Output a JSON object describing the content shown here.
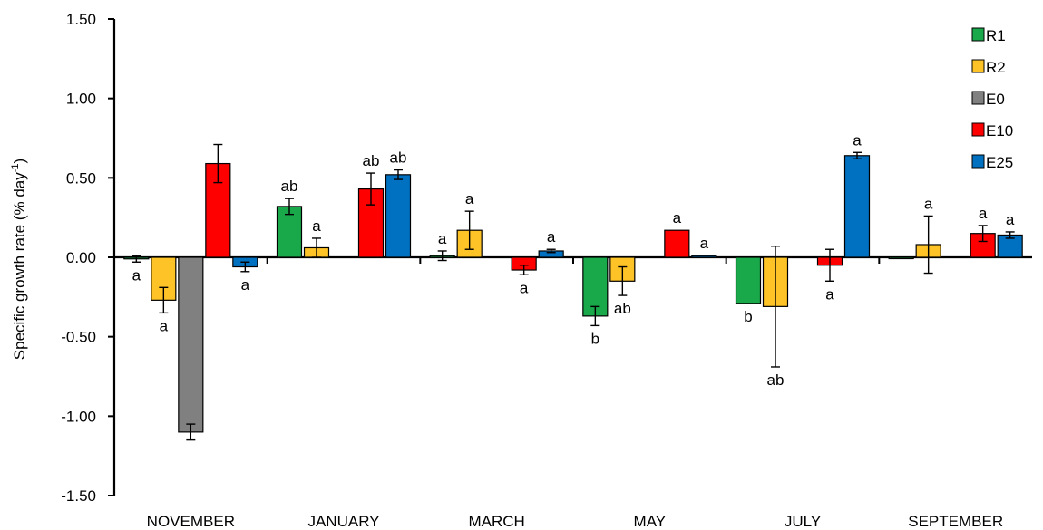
{
  "chart_data": {
    "type": "bar",
    "title": "",
    "xlabel": "",
    "ylabel": "Specific growth rate (% day",
    "ylabel_superscript": "-1",
    "ylabel_close": ")",
    "ylim": [
      -1.5,
      1.5
    ],
    "yticks": [
      "-1.50",
      "-1.00",
      "-0.50",
      "0.00",
      "0.50",
      "1.00",
      "1.50"
    ],
    "ytick_values": [
      -1.5,
      -1.0,
      -0.5,
      0.0,
      0.5,
      1.0,
      1.5
    ],
    "categories": [
      "NOVEMBER",
      "JANUARY",
      "MARCH",
      "MAY",
      "JULY",
      "SEPTEMBER"
    ],
    "grid": false,
    "legend_position": "top-right",
    "series": [
      {
        "name": "R1",
        "color": "#19a84a",
        "values": [
          -0.01,
          0.32,
          0.01,
          -0.37,
          -0.29,
          0.0
        ],
        "errors": [
          0.02,
          0.05,
          0.03,
          0.06,
          0.0,
          0.0
        ],
        "letters": [
          "a",
          "ab",
          "a",
          "b",
          "b",
          ""
        ]
      },
      {
        "name": "R2",
        "color": "#fec326",
        "values": [
          -0.27,
          0.06,
          0.17,
          -0.15,
          -0.31,
          0.08
        ],
        "errors": [
          0.08,
          0.06,
          0.12,
          0.09,
          0.38,
          0.18
        ],
        "letters": [
          "a",
          "a",
          "a",
          "ab",
          "ab",
          "a"
        ]
      },
      {
        "name": "E0",
        "color": "#808080",
        "values": [
          -1.1,
          null,
          null,
          null,
          null,
          null
        ],
        "errors": [
          0.05,
          null,
          null,
          null,
          null,
          null
        ],
        "letters": [
          "",
          "",
          "",
          "",
          "",
          ""
        ]
      },
      {
        "name": "E10",
        "color": "#ff0000",
        "values": [
          0.59,
          0.43,
          -0.08,
          0.17,
          -0.05,
          0.15
        ],
        "errors": [
          0.12,
          0.1,
          0.03,
          0.0,
          0.1,
          0.05
        ],
        "letters": [
          "",
          "ab",
          "a",
          "a",
          "a",
          "a"
        ]
      },
      {
        "name": "E25",
        "color": "#0070c0",
        "values": [
          -0.06,
          0.52,
          0.04,
          0.01,
          0.64,
          0.14
        ],
        "errors": [
          0.03,
          0.03,
          0.01,
          0.0,
          0.02,
          0.02
        ],
        "letters": [
          "a",
          "ab",
          "a",
          "a",
          "a",
          "a"
        ]
      }
    ]
  }
}
